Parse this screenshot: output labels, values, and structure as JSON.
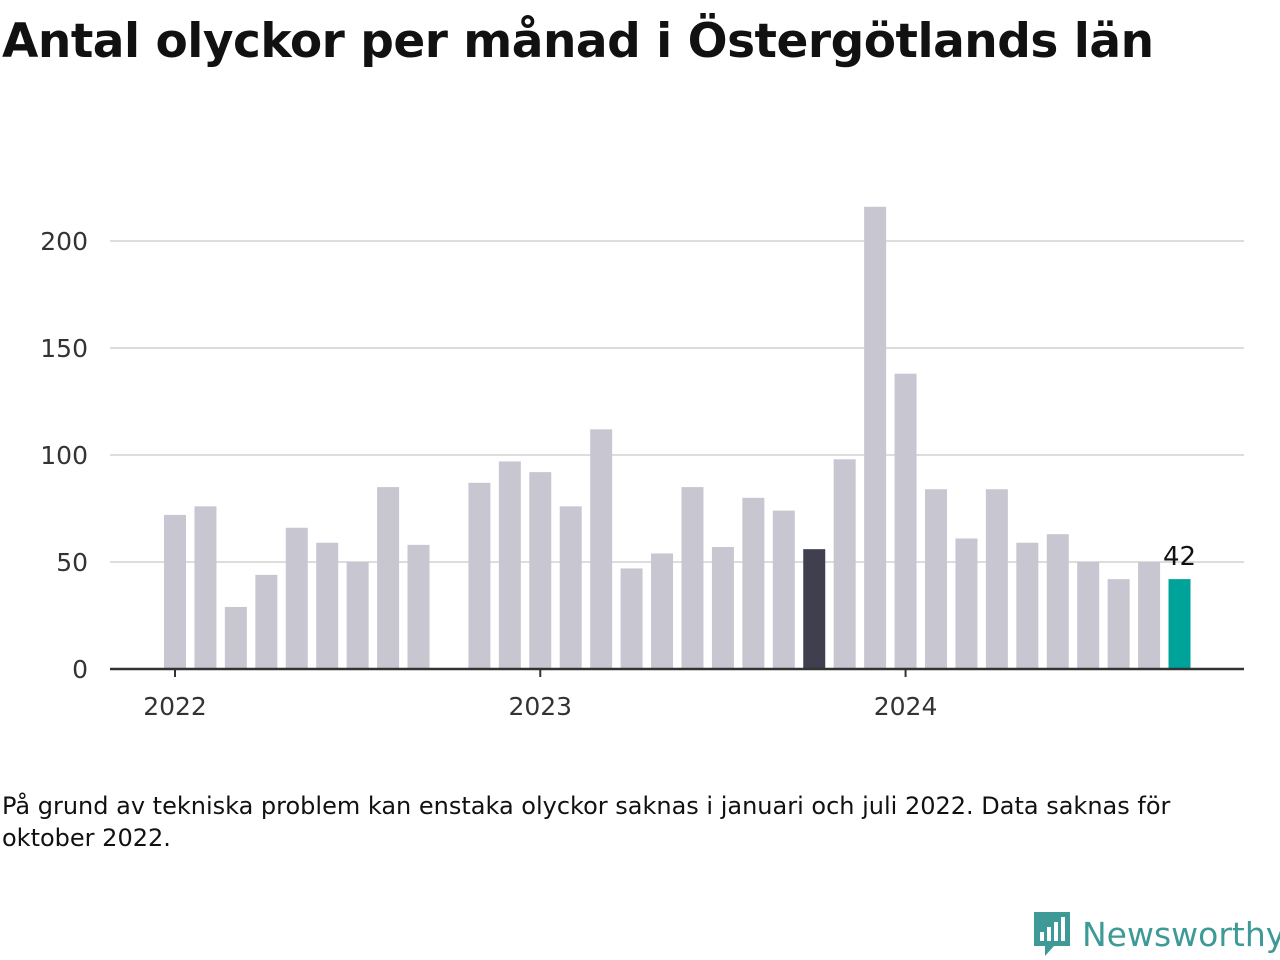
{
  "title": "Antal olyckor per månad i Östergötlands län",
  "note": "På grund av tekniska problem kan enstaka olyckor saknas i januari och juli 2022. Data saknas för oktober 2022.",
  "brand": {
    "name": "Newsworthy",
    "icon": "newsworthy-logo-icon",
    "color": "#3d9a96"
  },
  "chart_data": {
    "type": "bar",
    "title": "Antal olyckor per månad i Östergötlands län",
    "xlabel": "",
    "ylabel": "",
    "ylim": [
      0,
      220
    ],
    "yticks": [
      0,
      50,
      100,
      150,
      200
    ],
    "xticks": [
      {
        "label": "2022",
        "month": "2022-01"
      },
      {
        "label": "2023",
        "month": "2023-01"
      },
      {
        "label": "2024",
        "month": "2024-01"
      }
    ],
    "grid": true,
    "legend": "none",
    "colors": {
      "default": "#c8c7d1",
      "highlight_prev_year": "#403f50",
      "highlight_latest": "#00a39a",
      "grid": "#dddddd",
      "axis": "#333333"
    },
    "categories": [
      "2022-01",
      "2022-02",
      "2022-03",
      "2022-04",
      "2022-05",
      "2022-06",
      "2022-07",
      "2022-08",
      "2022-09",
      "2022-10",
      "2022-11",
      "2022-12",
      "2023-01",
      "2023-02",
      "2023-03",
      "2023-04",
      "2023-05",
      "2023-06",
      "2023-07",
      "2023-08",
      "2023-09",
      "2023-10",
      "2023-11",
      "2023-12",
      "2024-01",
      "2024-02",
      "2024-03",
      "2024-04",
      "2024-05",
      "2024-06",
      "2024-07",
      "2024-08",
      "2024-09",
      "2024-10"
    ],
    "values": [
      72,
      76,
      29,
      44,
      66,
      59,
      50,
      85,
      58,
      null,
      87,
      97,
      92,
      76,
      112,
      47,
      54,
      85,
      57,
      80,
      74,
      56,
      98,
      216,
      138,
      84,
      61,
      84,
      59,
      63,
      50,
      42,
      50,
      42
    ],
    "highlight": {
      "prev_year": "2023-10",
      "latest": "2024-10"
    },
    "data_labels": [
      {
        "month": "2024-10",
        "text": "42"
      }
    ]
  }
}
